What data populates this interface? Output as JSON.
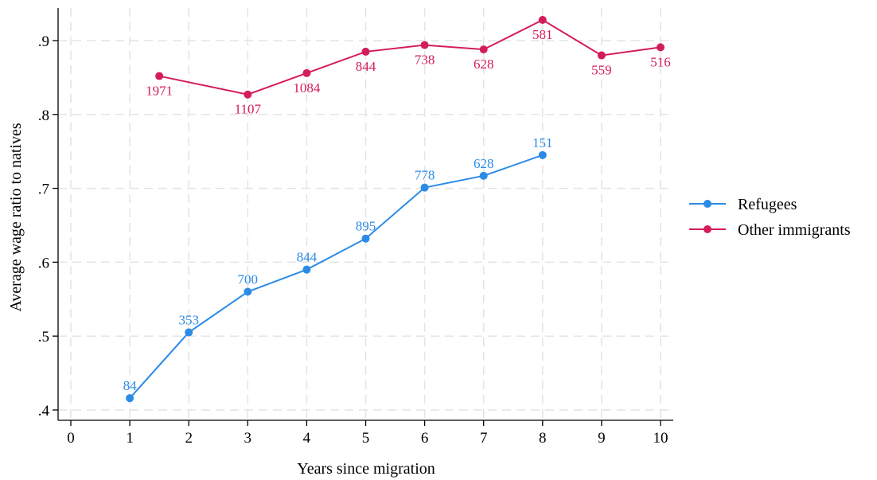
{
  "chart_data": {
    "type": "line",
    "title": "",
    "xlabel": "Years since migration",
    "ylabel": "Average wage ratio to natives",
    "xlim": [
      0,
      10
    ],
    "ylim": [
      0.4,
      0.9
    ],
    "xticks": [
      {
        "value": 0,
        "label": "0"
      },
      {
        "value": 1,
        "label": "1"
      },
      {
        "value": 2,
        "label": "2"
      },
      {
        "value": 3,
        "label": "3"
      },
      {
        "value": 4,
        "label": "4"
      },
      {
        "value": 5,
        "label": "5"
      },
      {
        "value": 6,
        "label": "6"
      },
      {
        "value": 7,
        "label": "7"
      },
      {
        "value": 8,
        "label": "8"
      },
      {
        "value": 9,
        "label": "9"
      },
      {
        "value": 10,
        "label": "10"
      }
    ],
    "yticks": [
      {
        "value": 0.4,
        "label": ".4"
      },
      {
        "value": 0.5,
        "label": ".5"
      },
      {
        "value": 0.6,
        "label": ".6"
      },
      {
        "value": 0.7,
        "label": ".7"
      },
      {
        "value": 0.8,
        "label": ".8"
      },
      {
        "value": 0.9,
        "label": ".9"
      }
    ],
    "grid": true,
    "legend_position": "right",
    "series": [
      {
        "name": "Refugees",
        "color": "#2b8be6",
        "label_position": "above",
        "points": [
          {
            "x": 1,
            "y": 0.416,
            "label": "84"
          },
          {
            "x": 2,
            "y": 0.505,
            "label": "353"
          },
          {
            "x": 3,
            "y": 0.56,
            "label": "700"
          },
          {
            "x": 4,
            "y": 0.59,
            "label": "844"
          },
          {
            "x": 5,
            "y": 0.632,
            "label": "895"
          },
          {
            "x": 6,
            "y": 0.701,
            "label": "778"
          },
          {
            "x": 7,
            "y": 0.717,
            "label": "628"
          },
          {
            "x": 8,
            "y": 0.745,
            "label": "151"
          }
        ]
      },
      {
        "name": "Other immigrants",
        "color": "#d41c5c",
        "label_position": "below",
        "points": [
          {
            "x": 1.5,
            "y": 0.852,
            "label": "1971"
          },
          {
            "x": 3,
            "y": 0.827,
            "label": "1107"
          },
          {
            "x": 4,
            "y": 0.856,
            "label": "1084"
          },
          {
            "x": 5,
            "y": 0.885,
            "label": "844"
          },
          {
            "x": 6,
            "y": 0.894,
            "label": "738"
          },
          {
            "x": 7,
            "y": 0.888,
            "label": "628"
          },
          {
            "x": 8,
            "y": 0.928,
            "label": "581",
            "label_position": "below"
          },
          {
            "x": 9,
            "y": 0.88,
            "label": "559"
          },
          {
            "x": 10,
            "y": 0.891,
            "label": "516"
          }
        ]
      }
    ]
  }
}
